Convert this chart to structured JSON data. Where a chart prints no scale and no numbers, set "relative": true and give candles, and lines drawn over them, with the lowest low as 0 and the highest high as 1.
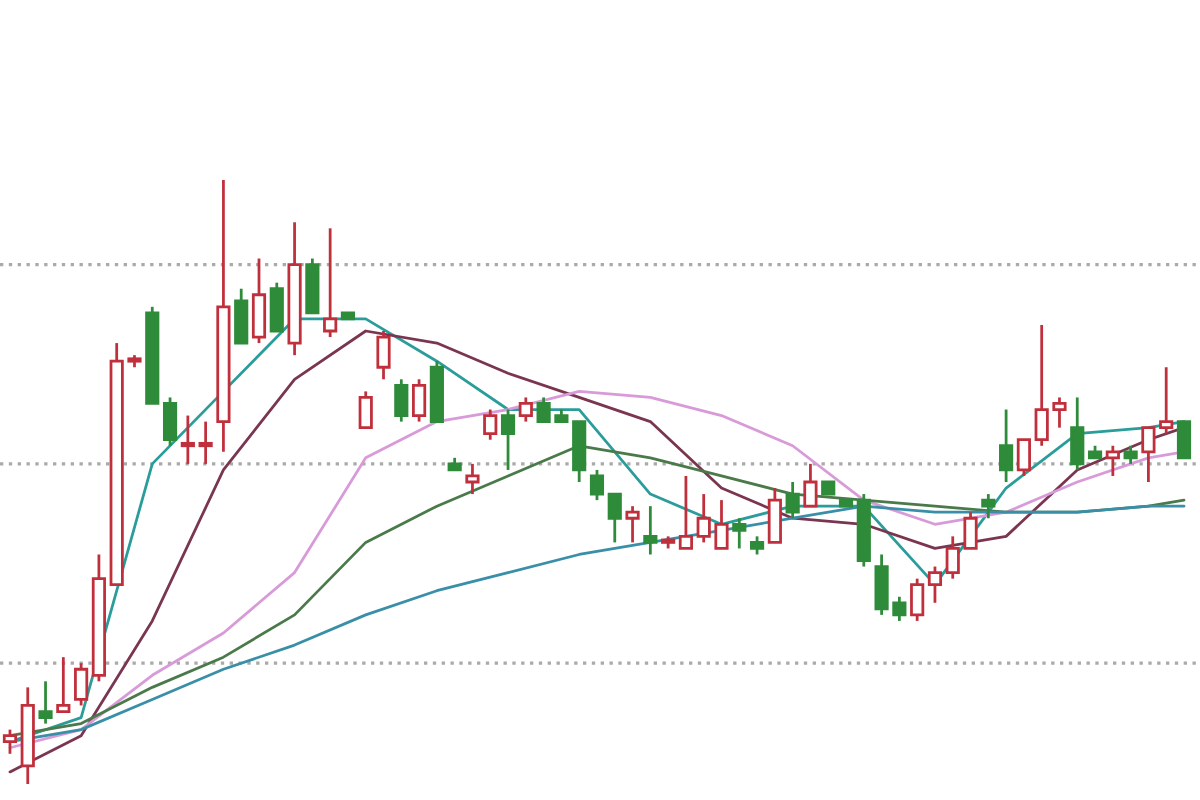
{
  "chart_data": {
    "type": "candlestick",
    "relative": true,
    "categories": [
      null,
      null,
      null,
      null,
      null,
      null,
      null,
      null,
      null,
      null,
      null,
      null,
      null,
      null,
      null,
      null,
      null,
      null,
      null,
      null,
      null,
      null,
      null,
      null,
      null,
      null,
      null,
      null,
      null,
      null,
      null,
      null,
      null,
      null,
      null,
      null,
      null,
      null,
      null,
      null,
      null,
      null,
      null,
      null,
      null,
      null,
      null,
      null,
      null,
      null,
      null,
      null,
      null,
      null,
      null,
      null,
      null,
      null,
      null,
      null,
      null,
      null,
      null,
      null,
      null,
      null,
      null
    ],
    "ohlc": [
      [
        0.07,
        0.09,
        0.05,
        0.08
      ],
      [
        0.03,
        0.16,
        0.0,
        0.13
      ],
      [
        0.12,
        0.17,
        0.1,
        0.11
      ],
      [
        0.12,
        0.21,
        0.12,
        0.13
      ],
      [
        0.14,
        0.2,
        0.13,
        0.19
      ],
      [
        0.18,
        0.38,
        0.17,
        0.34
      ],
      [
        0.33,
        0.73,
        0.33,
        0.7
      ],
      [
        0.7,
        0.71,
        0.69,
        0.7
      ],
      [
        0.78,
        0.79,
        0.63,
        0.63
      ],
      [
        0.63,
        0.64,
        0.56,
        0.57
      ],
      [
        0.56,
        0.61,
        0.53,
        0.56
      ],
      [
        0.56,
        0.6,
        0.53,
        0.56
      ],
      [
        0.6,
        1.0,
        0.55,
        0.79
      ],
      [
        0.8,
        0.82,
        0.73,
        0.73
      ],
      [
        0.74,
        0.87,
        0.73,
        0.81
      ],
      [
        0.82,
        0.83,
        0.75,
        0.75
      ],
      [
        0.73,
        0.93,
        0.71,
        0.86
      ],
      [
        0.86,
        0.87,
        0.78,
        0.78
      ],
      [
        0.75,
        0.92,
        0.74,
        0.77
      ],
      [
        0.78,
        0.78,
        0.77,
        0.77
      ],
      [
        0.59,
        0.65,
        0.59,
        0.64
      ],
      [
        0.69,
        0.75,
        0.67,
        0.74
      ],
      [
        0.66,
        0.67,
        0.6,
        0.61
      ],
      [
        0.61,
        0.67,
        0.6,
        0.66
      ],
      [
        0.69,
        0.7,
        0.6,
        0.6
      ],
      [
        0.53,
        0.54,
        0.52,
        0.52
      ],
      [
        0.5,
        0.53,
        0.48,
        0.51
      ],
      [
        0.58,
        0.62,
        0.57,
        0.61
      ],
      [
        0.61,
        0.62,
        0.52,
        0.58
      ],
      [
        0.61,
        0.64,
        0.6,
        0.63
      ],
      [
        0.63,
        0.64,
        0.6,
        0.6
      ],
      [
        0.61,
        0.62,
        0.6,
        0.6
      ],
      [
        0.6,
        0.6,
        0.5,
        0.52
      ],
      [
        0.51,
        0.52,
        0.47,
        0.48
      ],
      [
        0.48,
        0.48,
        0.4,
        0.44
      ],
      [
        0.44,
        0.46,
        0.4,
        0.45
      ],
      [
        0.41,
        0.46,
        0.38,
        0.4
      ],
      [
        0.4,
        0.41,
        0.39,
        0.4
      ],
      [
        0.39,
        0.51,
        0.39,
        0.41
      ],
      [
        0.41,
        0.48,
        0.4,
        0.44
      ],
      [
        0.39,
        0.47,
        0.39,
        0.43
      ],
      [
        0.43,
        0.44,
        0.39,
        0.42
      ],
      [
        0.4,
        0.41,
        0.38,
        0.39
      ],
      [
        0.4,
        0.49,
        0.4,
        0.47
      ],
      [
        0.48,
        0.5,
        0.44,
        0.45
      ],
      [
        0.46,
        0.53,
        0.46,
        0.5
      ],
      [
        0.5,
        0.5,
        0.48,
        0.48
      ],
      [
        0.47,
        0.47,
        0.46,
        0.46
      ],
      [
        0.47,
        0.48,
        0.36,
        0.37
      ],
      [
        0.36,
        0.38,
        0.28,
        0.29
      ],
      [
        0.3,
        0.31,
        0.27,
        0.28
      ],
      [
        0.28,
        0.34,
        0.27,
        0.33
      ],
      [
        0.33,
        0.36,
        0.3,
        0.35
      ],
      [
        0.35,
        0.41,
        0.34,
        0.39
      ],
      [
        0.39,
        0.45,
        0.39,
        0.44
      ],
      [
        0.47,
        0.48,
        0.44,
        0.46
      ],
      [
        0.56,
        0.62,
        0.5,
        0.52
      ],
      [
        0.52,
        0.57,
        0.51,
        0.57
      ],
      [
        0.57,
        0.76,
        0.56,
        0.62
      ],
      [
        0.62,
        0.64,
        0.59,
        0.63
      ],
      [
        0.59,
        0.64,
        0.52,
        0.53
      ],
      [
        0.55,
        0.56,
        0.54,
        0.54
      ],
      [
        0.54,
        0.56,
        0.51,
        0.55
      ],
      [
        0.55,
        0.56,
        0.53,
        0.54
      ],
      [
        0.55,
        0.59,
        0.5,
        0.59
      ],
      [
        0.59,
        0.69,
        0.58,
        0.6
      ],
      [
        0.6,
        0.6,
        0.54,
        0.54
      ]
    ],
    "colors": [
      "#c0303c",
      "#c0303c",
      "#2e8b3a",
      "#c0303c",
      "#c0303c",
      "#c0303c",
      "#c0303c",
      "#c0303c",
      "#2e8b3a",
      "#2e8b3a",
      "#c0303c",
      "#c0303c",
      "#c0303c",
      "#2e8b3a",
      "#c0303c",
      "#2e8b3a",
      "#c0303c",
      "#2e8b3a",
      "#c0303c",
      "#2e8b3a",
      "#c0303c",
      "#c0303c",
      "#2e8b3a",
      "#c0303c",
      "#2e8b3a",
      "#2e8b3a",
      "#c0303c",
      "#c0303c",
      "#2e8b3a",
      "#c0303c",
      "#2e8b3a",
      "#2e8b3a",
      "#2e8b3a",
      "#2e8b3a",
      "#2e8b3a",
      "#c0303c",
      "#2e8b3a",
      "#c0303c",
      "#c0303c",
      "#c0303c",
      "#c0303c",
      "#2e8b3a",
      "#2e8b3a",
      "#c0303c",
      "#2e8b3a",
      "#c0303c",
      "#2e8b3a",
      "#2e8b3a",
      "#2e8b3a",
      "#2e8b3a",
      "#2e8b3a",
      "#c0303c",
      "#c0303c",
      "#c0303c",
      "#c0303c",
      "#2e8b3a",
      "#2e8b3a",
      "#c0303c",
      "#c0303c",
      "#c0303c",
      "#2e8b3a",
      "#2e8b3a",
      "#c0303c",
      "#2e8b3a",
      "#c0303c",
      "#c0303c",
      "#2e8b3a"
    ],
    "series": [
      {
        "type": "line",
        "color": "#2a9d9a",
        "values": [
          0.07,
          null,
          null,
          null,
          0.11,
          null,
          null,
          null,
          0.53,
          null,
          null,
          null,
          0.65,
          null,
          null,
          null,
          0.77,
          null,
          null,
          null,
          0.77,
          null,
          null,
          null,
          0.7,
          null,
          null,
          null,
          0.62,
          null,
          null,
          null,
          0.62,
          null,
          null,
          null,
          0.48,
          null,
          null,
          null,
          0.43,
          null,
          null,
          null,
          0.46,
          null,
          null,
          null,
          0.46,
          null,
          null,
          null,
          0.33,
          null,
          null,
          null,
          0.49,
          null,
          null,
          null,
          0.58,
          null,
          null,
          null,
          0.59,
          null,
          0.6
        ]
      },
      {
        "type": "line",
        "color": "#7a3550",
        "values": [
          0.02,
          null,
          null,
          null,
          0.08,
          null,
          null,
          null,
          0.27,
          null,
          null,
          null,
          0.52,
          null,
          null,
          null,
          0.67,
          null,
          null,
          null,
          0.75,
          null,
          null,
          null,
          0.73,
          null,
          null,
          null,
          0.68,
          null,
          null,
          null,
          0.64,
          null,
          null,
          null,
          0.6,
          null,
          null,
          null,
          0.49,
          null,
          null,
          null,
          0.44,
          null,
          null,
          null,
          0.43,
          null,
          null,
          null,
          0.39,
          null,
          null,
          null,
          0.41,
          null,
          null,
          null,
          0.52,
          null,
          null,
          null,
          0.57,
          null,
          0.59
        ]
      },
      {
        "type": "line",
        "color": "#d89ad8",
        "values": [
          0.06,
          null,
          null,
          null,
          0.09,
          null,
          null,
          null,
          0.18,
          null,
          null,
          null,
          0.25,
          null,
          null,
          null,
          0.35,
          null,
          null,
          null,
          0.54,
          null,
          null,
          null,
          0.6,
          null,
          null,
          null,
          0.62,
          null,
          null,
          null,
          0.65,
          null,
          null,
          null,
          0.64,
          null,
          null,
          null,
          0.61,
          null,
          null,
          null,
          0.56,
          null,
          null,
          null,
          0.47,
          null,
          null,
          null,
          0.43,
          null,
          null,
          null,
          0.45,
          null,
          null,
          null,
          0.5,
          null,
          null,
          null,
          0.54,
          null,
          0.55
        ]
      },
      {
        "type": "line",
        "color": "#4a7a4a",
        "values": [
          0.08,
          null,
          null,
          null,
          0.1,
          null,
          null,
          null,
          0.16,
          null,
          null,
          null,
          0.21,
          null,
          null,
          null,
          0.28,
          null,
          null,
          null,
          0.4,
          null,
          null,
          null,
          0.46,
          null,
          null,
          null,
          0.51,
          null,
          null,
          null,
          0.56,
          null,
          null,
          null,
          0.54,
          null,
          null,
          null,
          0.51,
          null,
          null,
          null,
          0.48,
          null,
          null,
          null,
          0.47,
          null,
          null,
          null,
          0.46,
          null,
          null,
          null,
          0.45,
          null,
          null,
          null,
          0.45,
          null,
          null,
          null,
          0.46,
          null,
          0.47
        ]
      },
      {
        "type": "line",
        "color": "#3a8fa8",
        "values": [
          0.07,
          null,
          null,
          null,
          0.09,
          null,
          null,
          null,
          0.14,
          null,
          null,
          null,
          0.19,
          null,
          null,
          null,
          0.23,
          null,
          null,
          null,
          0.28,
          null,
          null,
          null,
          0.32,
          null,
          null,
          null,
          0.35,
          null,
          null,
          null,
          0.38,
          null,
          null,
          null,
          0.4,
          null,
          null,
          null,
          0.42,
          null,
          null,
          null,
          0.44,
          null,
          null,
          null,
          0.46,
          null,
          null,
          null,
          0.45,
          null,
          null,
          null,
          0.45,
          null,
          null,
          null,
          0.45,
          null,
          null,
          null,
          0.46,
          null,
          0.46
        ]
      }
    ],
    "ref_lines": [
      {
        "axis": "y",
        "value": 0.86,
        "color": "#aaaaaa",
        "line_style": "dotted"
      },
      {
        "axis": "y",
        "value": 0.53,
        "color": "#aaaaaa",
        "line_style": "dotted"
      },
      {
        "axis": "y",
        "value": 0.2,
        "color": "#aaaaaa",
        "line_style": "dotted"
      }
    ]
  }
}
